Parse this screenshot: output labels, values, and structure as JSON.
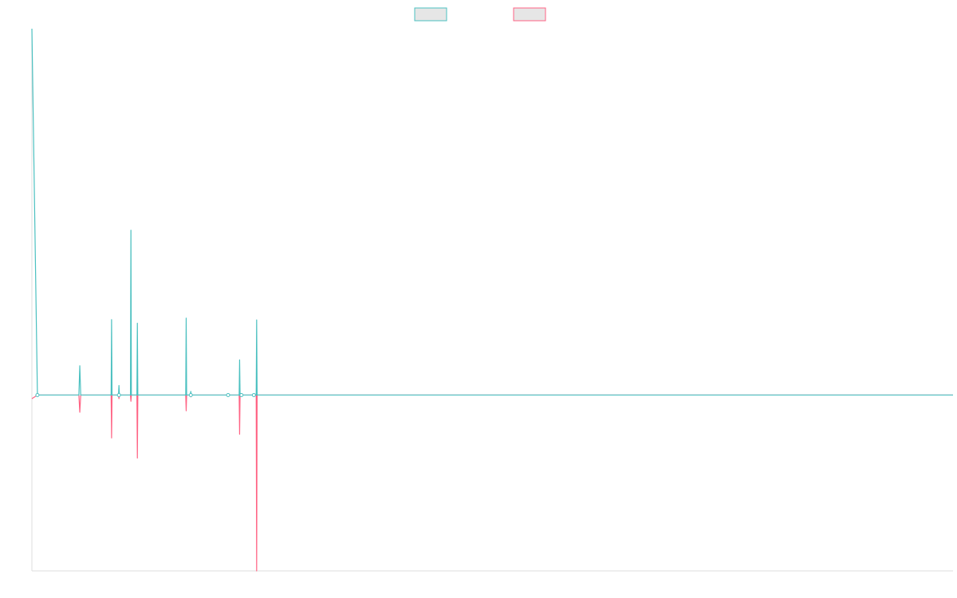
{
  "chart_data": {
    "type": "line",
    "title": "",
    "xlabel": "",
    "ylabel": "",
    "x_range": [
      0,
      100
    ],
    "ylim": [
      -4.8,
      10
    ],
    "grid": false,
    "legend_position": "top-center",
    "series": [
      {
        "label": "",
        "color": "#4bc0c0",
        "fill": "#e6e6e6",
        "points": [
          [
            0.0,
            10.0
          ],
          [
            0.6,
            0.0
          ],
          [
            5.1,
            0.0
          ],
          [
            5.2,
            0.8
          ],
          [
            5.3,
            0.0
          ],
          [
            8.6,
            0.0
          ],
          [
            8.65,
            2.06
          ],
          [
            8.7,
            0.0
          ],
          [
            9.4,
            0.0
          ],
          [
            9.45,
            0.26
          ],
          [
            9.5,
            0.0
          ],
          [
            10.7,
            0.0
          ],
          [
            10.75,
            4.5
          ],
          [
            10.8,
            0.0
          ],
          [
            11.4,
            0.0
          ],
          [
            11.45,
            1.96
          ],
          [
            11.5,
            0.0
          ],
          [
            16.7,
            0.0
          ],
          [
            16.75,
            2.1
          ],
          [
            16.8,
            0.0
          ],
          [
            17.2,
            0.0
          ],
          [
            17.25,
            0.1
          ],
          [
            17.3,
            0.0
          ],
          [
            22.5,
            0.0
          ],
          [
            22.55,
            0.96
          ],
          [
            22.6,
            0.0
          ],
          [
            24.35,
            0.0
          ],
          [
            24.4,
            2.05
          ],
          [
            24.45,
            0.0
          ],
          [
            100.0,
            0.0
          ]
        ]
      },
      {
        "label": "",
        "color": "#ff6384",
        "fill": "#e6e6e6",
        "points": [
          [
            0.0,
            -0.1
          ],
          [
            0.6,
            0.0
          ],
          [
            5.1,
            0.0
          ],
          [
            5.2,
            -0.47
          ],
          [
            5.3,
            0.0
          ],
          [
            8.6,
            0.0
          ],
          [
            8.65,
            -1.17
          ],
          [
            8.7,
            0.0
          ],
          [
            9.4,
            0.0
          ],
          [
            9.45,
            -0.1
          ],
          [
            9.5,
            0.0
          ],
          [
            10.7,
            0.0
          ],
          [
            10.75,
            -0.17
          ],
          [
            10.8,
            0.0
          ],
          [
            11.4,
            0.0
          ],
          [
            11.45,
            -1.72
          ],
          [
            11.5,
            0.0
          ],
          [
            16.7,
            0.0
          ],
          [
            16.75,
            -0.43
          ],
          [
            16.8,
            0.0
          ],
          [
            17.2,
            0.0
          ],
          [
            17.25,
            -0.05
          ],
          [
            17.3,
            0.0
          ],
          [
            22.5,
            0.0
          ],
          [
            22.55,
            -1.07
          ],
          [
            22.6,
            0.0
          ],
          [
            24.35,
            0.0
          ],
          [
            24.4,
            -4.8
          ],
          [
            24.45,
            0.0
          ],
          [
            100.0,
            0.0
          ]
        ]
      }
    ],
    "markers": [
      0.6,
      9.45,
      21.3,
      22.75,
      24.1,
      17.25
    ]
  }
}
